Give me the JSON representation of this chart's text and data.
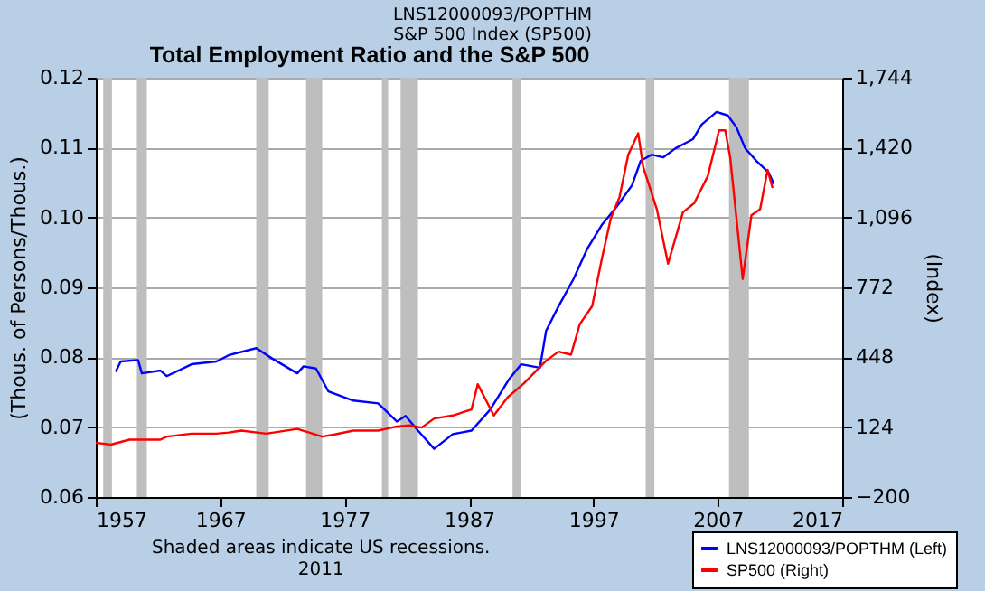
{
  "chart_data": {
    "type": "line",
    "title": "Total Employment Ratio and the S&P 500",
    "subtitle": "LNS12000093/POPTHM\nS&P 500 Index (SP500)",
    "ylabel": "(Thous. of Persons/Thous.)",
    "y2label": "(Index)",
    "annotations": [
      "Shaded areas indicate US recessions.",
      "2011"
    ],
    "xlim": [
      1957,
      2017
    ],
    "xticks": [
      1957,
      1967,
      1977,
      1987,
      1997,
      2007,
      2017
    ],
    "ylim": [
      0.06,
      0.12
    ],
    "yticks": [
      0.06,
      0.07,
      0.08,
      0.09,
      {
        "value": 0.1,
        "label": "0.10"
      },
      0.11,
      0.12
    ],
    "y2lim": [
      -200,
      1744
    ],
    "y2ticks": [
      -200,
      124,
      448,
      772,
      {
        "value": 1096,
        "label": "1,096"
      },
      {
        "value": 1420,
        "label": "1,420"
      },
      {
        "value": 1744,
        "label": "1,744"
      }
    ],
    "grid": "y",
    "legend": "bottom right",
    "line_style": "solid",
    "marker": "none",
    "bands": [
      {
        "axis": "x",
        "from": 1957.6,
        "to": 1958.3,
        "color": "#bebebe"
      },
      {
        "axis": "x",
        "from": 1960.3,
        "to": 1961.1,
        "color": "#bebebe"
      },
      {
        "axis": "x",
        "from": 1969.9,
        "to": 1970.9,
        "color": "#bebebe"
      },
      {
        "axis": "x",
        "from": 1973.9,
        "to": 1975.2,
        "color": "#bebebe"
      },
      {
        "axis": "x",
        "from": 1980.0,
        "to": 1980.5,
        "color": "#bebebe"
      },
      {
        "axis": "x",
        "from": 1981.5,
        "to": 1982.9,
        "color": "#bebebe"
      },
      {
        "axis": "x",
        "from": 1990.5,
        "to": 1991.2,
        "color": "#bebebe"
      },
      {
        "axis": "x",
        "from": 2001.2,
        "to": 2001.9,
        "color": "#bebebe"
      },
      {
        "axis": "x",
        "from": 2007.9,
        "to": 2009.5,
        "color": "#bebebe"
      }
    ],
    "series": [
      {
        "name": "LNS12000093/POPTHM (Left)",
        "color": "#0000ff",
        "x": [
          1958.6,
          1959.0,
          1960.4,
          1960.7,
          1962.2,
          1962.7,
          1964.7,
          1966.7,
          1967.7,
          1969.9,
          1971.2,
          1973.2,
          1973.7,
          1974.7,
          1975.7,
          1977.7,
          1979.7,
          1981.2,
          1981.9,
          1982.9,
          1984.2,
          1985.7,
          1987.2,
          1988.7,
          1990.2,
          1991.2,
          1992.7,
          1993.2,
          1994.2,
          1995.4,
          1996.5,
          1997.7,
          1998.9,
          2000.1,
          2000.8,
          2001.7,
          2002.6,
          2003.6,
          2005.0,
          2005.7,
          2006.9,
          2007.8,
          2008.5,
          2009.2,
          2010.1,
          2011.1,
          2011.5
        ],
        "values": [
          0.0779,
          0.0794,
          0.0796,
          0.0777,
          0.0781,
          0.0773,
          0.079,
          0.0794,
          0.0803,
          0.0813,
          0.0798,
          0.0777,
          0.0787,
          0.0784,
          0.0751,
          0.0738,
          0.0734,
          0.0708,
          0.0716,
          0.0695,
          0.0669,
          0.069,
          0.0695,
          0.0725,
          0.0768,
          0.079,
          0.0785,
          0.0838,
          0.0873,
          0.0912,
          0.0955,
          0.099,
          0.1016,
          0.1046,
          0.1081,
          0.109,
          0.1086,
          0.1099,
          0.1112,
          0.1133,
          0.1151,
          0.1146,
          0.1129,
          0.1099,
          0.1081,
          0.1064,
          0.1048
        ]
      },
      {
        "name": "SP500 (Right)",
        "color": "#ff0000",
        "axis": "y2",
        "x": [
          1957.0,
          1958.2,
          1959.7,
          1960.7,
          1962.2,
          1962.7,
          1964.7,
          1966.7,
          1967.7,
          1968.7,
          1970.7,
          1973.2,
          1975.2,
          1976.2,
          1977.7,
          1979.7,
          1981.2,
          1982.2,
          1983.2,
          1984.2,
          1985.7,
          1987.2,
          1987.7,
          1989.0,
          1990.1,
          1991.4,
          1993.2,
          1994.2,
          1995.2,
          1995.9,
          1996.9,
          1997.7,
          1998.4,
          1999.1,
          1999.8,
          2000.6,
          2001.0,
          2002.1,
          2003.0,
          2004.2,
          2005.1,
          2006.2,
          2007.1,
          2007.6,
          2008.0,
          2009.0,
          2009.7,
          2010.4,
          2011.0,
          2011.4
        ],
        "values": [
          52,
          43,
          66,
          66,
          66,
          80,
          94,
          94,
          99,
          108,
          94,
          116,
          80,
          90,
          108,
          108,
          127,
          132,
          122,
          164,
          178,
          206,
          323,
          178,
          262,
          326,
          432,
          474,
          460,
          601,
          685,
          910,
          1092,
          1191,
          1387,
          1486,
          1331,
          1134,
          882,
          1120,
          1162,
          1289,
          1500,
          1500,
          1373,
          811,
          1106,
          1134,
          1317,
          1233
        ]
      }
    ]
  }
}
